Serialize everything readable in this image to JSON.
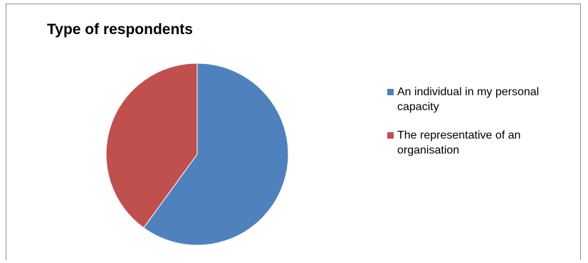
{
  "chart_data": {
    "type": "pie",
    "title": "Type of respondents",
    "legend_position": "right",
    "series": [
      {
        "name": "An individual in my personal capacity",
        "value": 60,
        "color": "#4F81BD"
      },
      {
        "name": "The representative of an organisation",
        "value": 40,
        "color": "#C0504D"
      }
    ]
  }
}
